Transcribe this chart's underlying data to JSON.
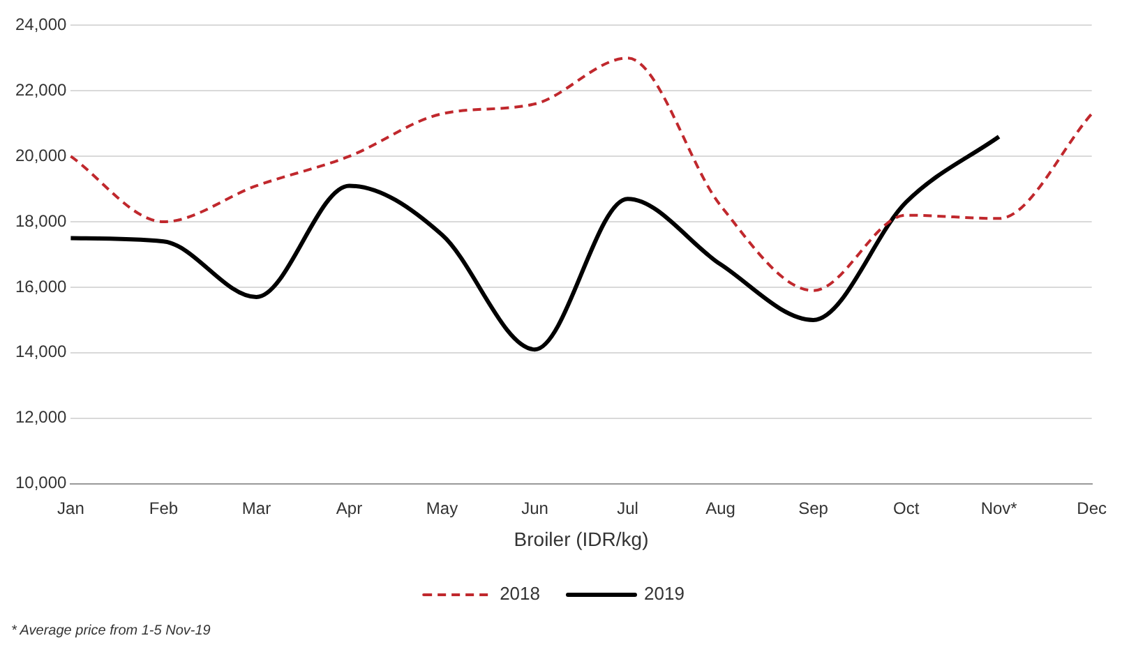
{
  "chart_data": {
    "type": "line",
    "categories": [
      "Jan",
      "Feb",
      "Mar",
      "Apr",
      "May",
      "Jun",
      "Jul",
      "Aug",
      "Sep",
      "Oct",
      "Nov*",
      "Dec"
    ],
    "series": [
      {
        "name": "2018",
        "color": "#c0282d",
        "line_style": "dashed",
        "values": [
          20000,
          18000,
          19100,
          20000,
          21300,
          21600,
          23000,
          18500,
          15900,
          18200,
          18100,
          21300
        ]
      },
      {
        "name": "2019",
        "color": "#000000",
        "line_style": "solid",
        "values": [
          17500,
          17400,
          15700,
          19100,
          17600,
          14100,
          18700,
          16700,
          15000,
          18600,
          20600,
          null
        ]
      }
    ],
    "xlabel": "Broiler (IDR/kg)",
    "ylim": [
      10000,
      24000
    ],
    "yticks": [
      {
        "value": 10000,
        "label": "10,000"
      },
      {
        "value": 12000,
        "label": "12,000"
      },
      {
        "value": 14000,
        "label": "14,000"
      },
      {
        "value": 16000,
        "label": "16,000"
      },
      {
        "value": 18000,
        "label": "18,000"
      },
      {
        "value": 20000,
        "label": "20,000"
      },
      {
        "value": 22000,
        "label": "22,000"
      },
      {
        "value": 24000,
        "label": "24,000"
      }
    ],
    "grid": "y",
    "legend": "bottom",
    "marker": "none",
    "annotations": [
      "* Average price from 1-5 Nov-19"
    ]
  }
}
